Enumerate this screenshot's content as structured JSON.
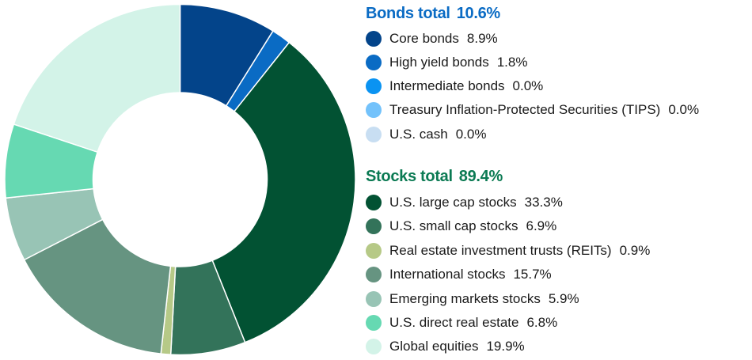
{
  "chart_data": {
    "type": "pie",
    "subtype": "donut",
    "title": "",
    "order": "clockwise from 12 o'clock",
    "categories": [
      "Core bonds",
      "High yield bonds",
      "Intermediate bonds",
      "Treasury Inflation-Protected Securities (TIPS)",
      "U.S. cash",
      "U.S. large cap stocks",
      "U.S. small cap stocks",
      "Real estate investment trusts (REITs)",
      "International stocks",
      "Emerging markets stocks",
      "U.S. direct real estate",
      "Global equities"
    ],
    "values": [
      8.9,
      1.8,
      0.0,
      0.0,
      0.0,
      33.3,
      6.9,
      0.9,
      15.7,
      5.9,
      6.8,
      19.9
    ],
    "colors": [
      "#03448a",
      "#0a6bc4",
      "#0a93f2",
      "#73c2fb",
      "#c8def2",
      "#025233",
      "#33735a",
      "#b6c987",
      "#669481",
      "#98c4b5",
      "#66d9b2",
      "#d3f3e8"
    ],
    "groups": [
      {
        "name": "Bonds total",
        "total": 10.6
      },
      {
        "name": "Stocks total",
        "total": 89.4
      }
    ],
    "unit": "%",
    "legend_position": "right"
  },
  "legend": {
    "bonds": {
      "title": "Bonds total",
      "total": "10.6%",
      "color": "#0a6bc4",
      "items": [
        {
          "label": "Core bonds",
          "value": "8.9%",
          "color": "#03448a"
        },
        {
          "label": "High yield bonds",
          "value": "1.8%",
          "color": "#0a6bc4"
        },
        {
          "label": "Intermediate bonds",
          "value": "0.0%",
          "color": "#0a93f2"
        },
        {
          "label": "Treasury Inflation-Protected Securities (TIPS)",
          "value": "0.0%",
          "color": "#73c2fb"
        },
        {
          "label": "U.S. cash",
          "value": "0.0%",
          "color": "#c8def2"
        }
      ]
    },
    "stocks": {
      "title": "Stocks total",
      "total": "89.4%",
      "color": "#0b7a53",
      "items": [
        {
          "label": "U.S. large cap stocks",
          "value": "33.3%",
          "color": "#025233"
        },
        {
          "label": "U.S. small cap stocks",
          "value": "6.9%",
          "color": "#33735a"
        },
        {
          "label": "Real estate investment trusts (REITs)",
          "value": "0.9%",
          "color": "#b6c987"
        },
        {
          "label": "International stocks",
          "value": "15.7%",
          "color": "#669481"
        },
        {
          "label": "Emerging markets stocks",
          "value": "5.9%",
          "color": "#98c4b5"
        },
        {
          "label": "U.S. direct real estate",
          "value": "6.8%",
          "color": "#66d9b2"
        },
        {
          "label": "Global equities",
          "value": "19.9%",
          "color": "#d3f3e8"
        }
      ]
    }
  }
}
